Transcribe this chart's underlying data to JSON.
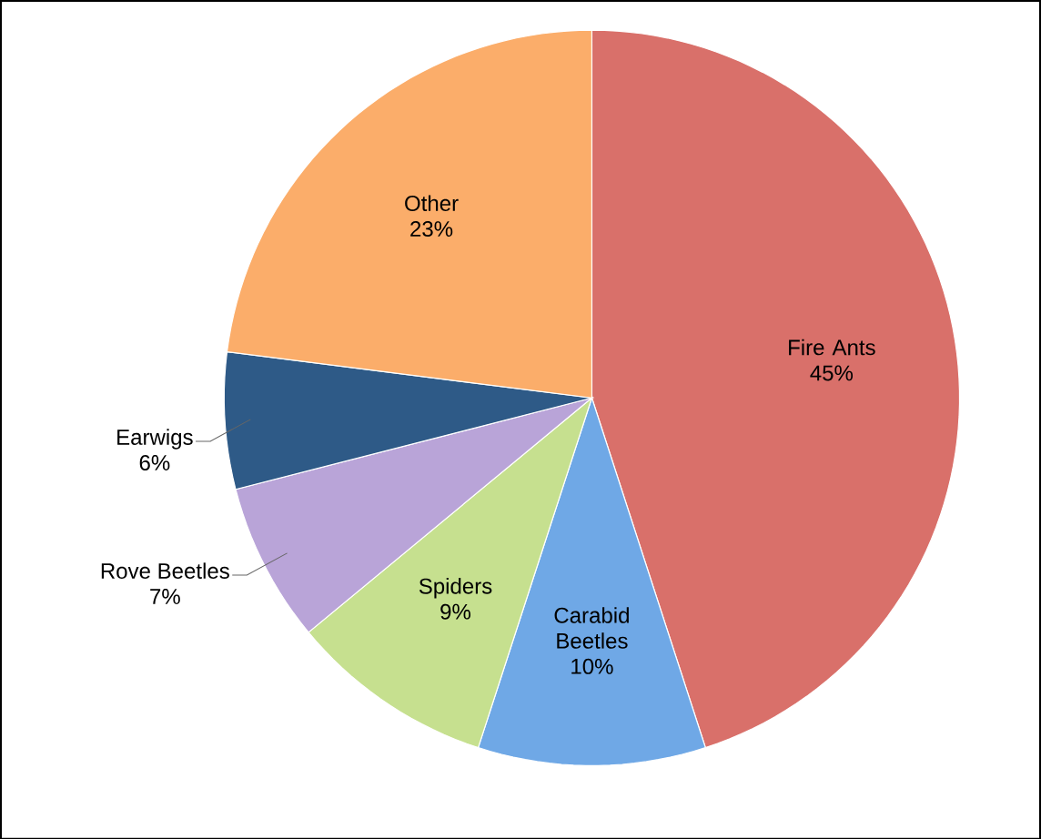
{
  "chart_data": {
    "type": "pie",
    "categories": [
      "Fire Ants",
      "Carabid Beetles",
      "Spiders",
      "Rove Beetles",
      "Earwigs",
      "Other"
    ],
    "values": [
      45,
      10,
      9,
      7,
      6,
      23
    ],
    "value_labels": [
      "45%",
      "10%",
      "9%",
      "7%",
      "6%",
      "23%"
    ],
    "colors": [
      "#d9706a",
      "#6fa8e6",
      "#c6e08f",
      "#b9a4d8",
      "#2e5a87",
      "#fbad6a"
    ]
  }
}
